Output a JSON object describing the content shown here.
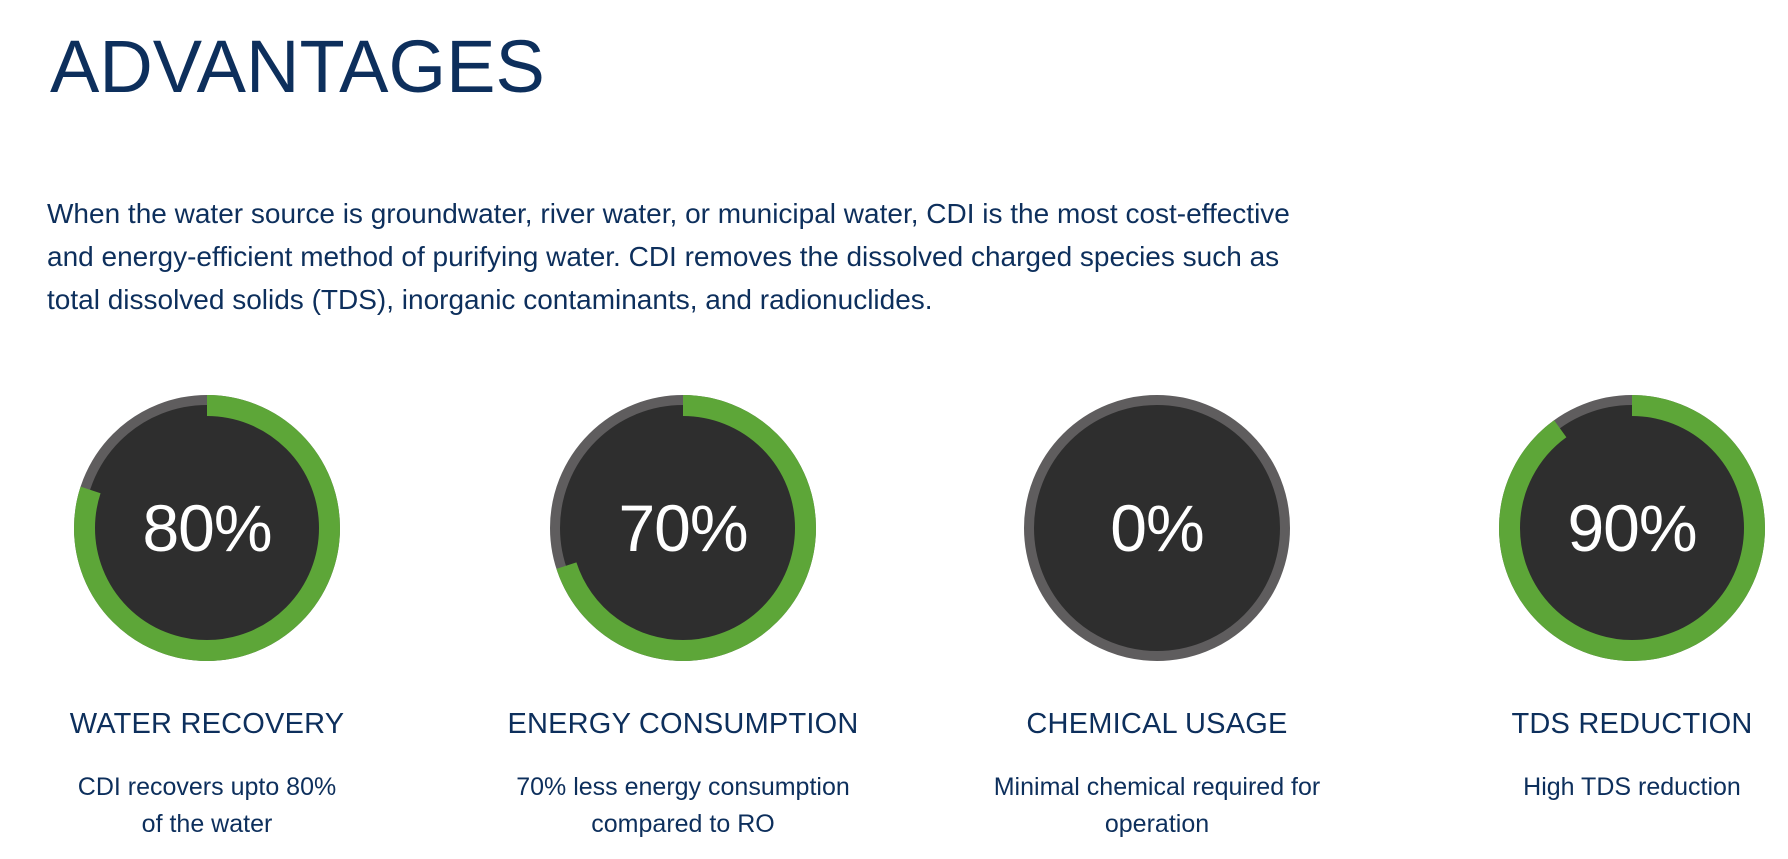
{
  "page": {
    "title": "ADVANTAGES",
    "intro": "When the water source is groundwater, river water, or municipal water, CDI is the most cost-effective and energy-efficient method of purifying water. CDI removes the dissolved charged species such as total dissolved solids (TDS), inorganic contaminants, and radionuclides."
  },
  "colors": {
    "text": "#0d2f5c",
    "gauge_fill": "#5da638",
    "gauge_track": "#5f5d5e",
    "gauge_face": "#2e2e2e",
    "gauge_text": "#ffffff"
  },
  "stats": [
    {
      "value": 80,
      "value_label": "80%",
      "title": "WATER RECOVERY",
      "description_lines": [
        "CDI recovers upto 80%",
        "of the water"
      ]
    },
    {
      "value": 70,
      "value_label": "70%",
      "title": "ENERGY CONSUMPTION",
      "description_lines": [
        "70% less energy consumption",
        "compared to RO"
      ]
    },
    {
      "value": 0,
      "value_label": "0%",
      "title": "CHEMICAL USAGE",
      "description_lines": [
        "Minimal chemical required for",
        "operation"
      ]
    },
    {
      "value": 90,
      "value_label": "90%",
      "title": "TDS REDUCTION",
      "description_lines": [
        "High TDS reduction"
      ]
    }
  ],
  "chart_data": {
    "type": "radial-progress",
    "categories": [
      "WATER RECOVERY",
      "ENERGY CONSUMPTION",
      "CHEMICAL USAGE",
      "TDS REDUCTION"
    ],
    "values": [
      80,
      70,
      0,
      90
    ],
    "unit": "%",
    "range": [
      0,
      100
    ]
  }
}
